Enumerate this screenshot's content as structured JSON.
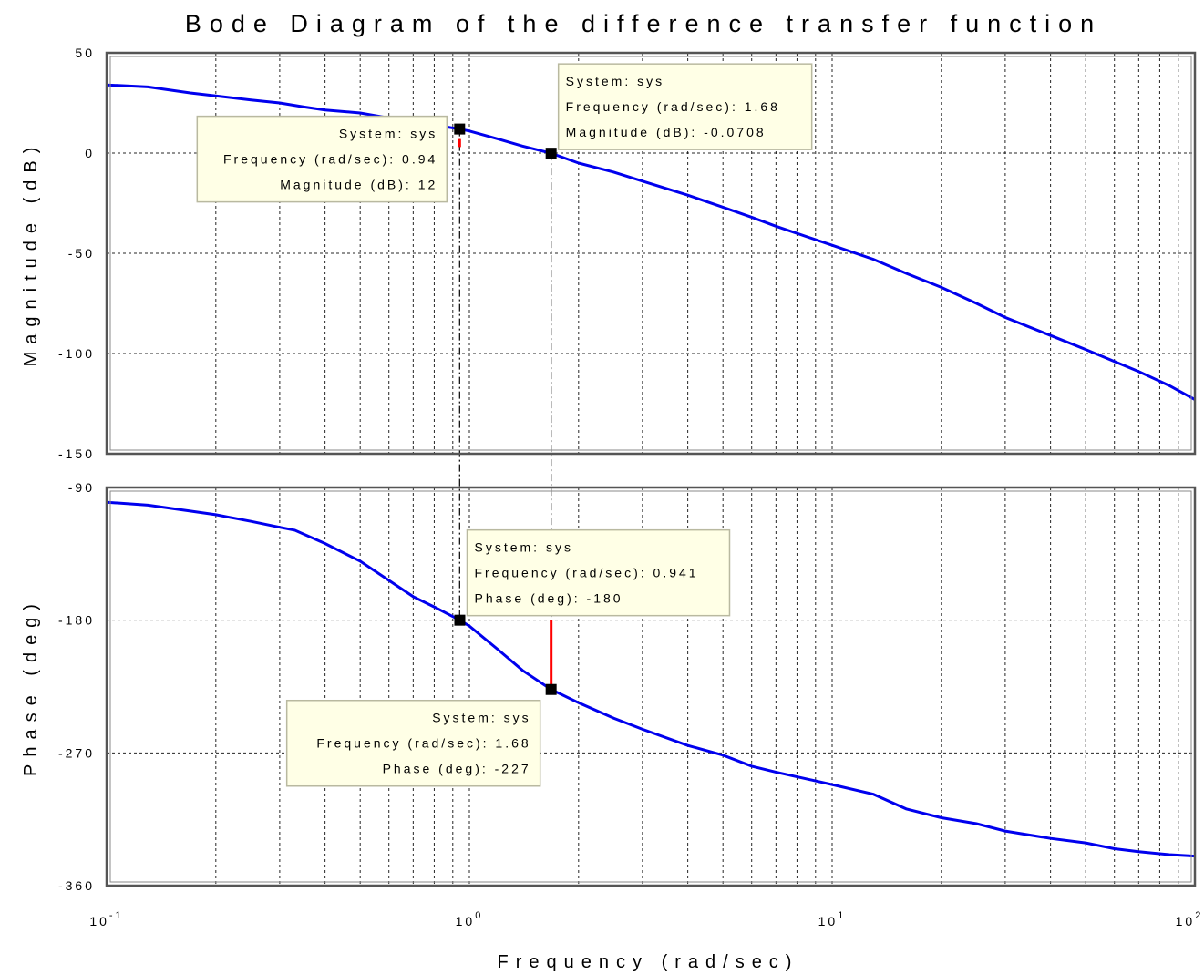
{
  "chart_data": {
    "type": "line",
    "title": "Bode Diagram of the difference transfer function",
    "xlabel": "Frequency (rad/sec)",
    "xscale": "log",
    "xlim": [
      0.1,
      100
    ],
    "x_ticks": [
      {
        "base": "10",
        "exp": "-1",
        "value": 0.1
      },
      {
        "base": "10",
        "exp": "0",
        "value": 1
      },
      {
        "base": "10",
        "exp": "1",
        "value": 10
      },
      {
        "base": "10",
        "exp": "2",
        "value": 100
      }
    ],
    "grid": true,
    "colors": {
      "curve": "#0000ee",
      "marker": "#ff0000",
      "datatip_bg": "#ffffe6"
    },
    "panels": [
      {
        "id": "magnitude",
        "ylabel": "Magnitude (dB)",
        "ylim": [
          -150,
          50
        ],
        "y_ticks": [
          50,
          0,
          -50,
          -100,
          -150
        ],
        "y_tick_labels": [
          "50",
          "0",
          "-50",
          "-100",
          "-150"
        ],
        "series": [
          {
            "x": [
              0.1,
              0.13,
              0.17,
              0.2,
              0.25,
              0.3,
              0.35,
              0.4,
              0.5,
              0.6,
              0.7,
              0.8,
              0.94,
              1.0,
              1.2,
              1.4,
              1.68,
              2.0,
              2.5,
              3.0,
              4.0,
              5.0,
              6.0,
              7.0,
              10.0,
              13.0,
              16.0,
              20.0,
              25.0,
              30.0,
              40.0,
              50.0,
              60.0,
              70.0,
              85.0,
              100.0
            ],
            "y": [
              34,
              33,
              30,
              28.5,
              26.5,
              25,
              23,
              21.5,
              20,
              17.5,
              15.5,
              14,
              12,
              11,
              7,
              3.5,
              -0.07,
              -5,
              -9.5,
              -14,
              -21,
              -27,
              -32,
              -36.5,
              -46,
              -53,
              -60,
              -67,
              -75,
              -82,
              -91,
              -98,
              -104,
              -109,
              -116,
              -123
            ]
          }
        ],
        "datatips": [
          {
            "lines": [
              "System: sys",
              "Frequency (rad/sec): 0.94",
              "Magnitude (dB): 12"
            ],
            "x": 0.94,
            "y": 12
          },
          {
            "lines": [
              "System: sys",
              "Frequency (rad/sec): 1.68",
              "Magnitude (dB): -0.0708"
            ],
            "x": 1.68,
            "y": -0.0708
          }
        ],
        "red_markers": [
          {
            "x": 0.94,
            "y1": 7,
            "y2": 3
          }
        ]
      },
      {
        "id": "phase",
        "ylabel": "Phase (deg)",
        "ylim": [
          -360,
          -90
        ],
        "y_ticks": [
          -90,
          -180,
          -270,
          -360
        ],
        "y_tick_labels": [
          "-90",
          "-180",
          "-270",
          "-360"
        ],
        "series": [
          {
            "x": [
              0.1,
              0.13,
              0.17,
              0.2,
              0.25,
              0.3,
              0.33,
              0.4,
              0.5,
              0.6,
              0.7,
              0.8,
              0.941,
              1.0,
              1.2,
              1.4,
              1.68,
              2.0,
              2.5,
              3.0,
              4.0,
              5.0,
              6.0,
              7.0,
              10.0,
              13.0,
              16.0,
              20.0,
              25.0,
              30.0,
              40.0,
              50.0,
              60.0,
              70.0,
              85.0,
              100.0
            ],
            "y": [
              -100,
              -102,
              -106,
              -108.5,
              -113,
              -117,
              -119,
              -128,
              -140,
              -153,
              -164,
              -171,
              -180,
              -184,
              -200,
              -214,
              -227,
              -236,
              -246.5,
              -254,
              -265,
              -271.5,
              -279,
              -283,
              -291.5,
              -298,
              -308,
              -314,
              -318,
              -323,
              -328,
              -331,
              -335,
              -337,
              -339,
              -340
            ]
          }
        ],
        "datatips": [
          {
            "lines": [
              "System: sys",
              "Frequency (rad/sec): 0.941",
              "Phase (deg): -180"
            ],
            "x": 0.941,
            "y": -180
          },
          {
            "lines": [
              "System: sys",
              "Frequency (rad/sec): 1.68",
              "Phase (deg): -227"
            ],
            "x": 1.68,
            "y": -227
          }
        ],
        "red_markers": [
          {
            "x": 1.68,
            "y1": -180,
            "y2": -227
          }
        ]
      }
    ],
    "guide_lines": [
      0.94,
      1.68
    ]
  }
}
